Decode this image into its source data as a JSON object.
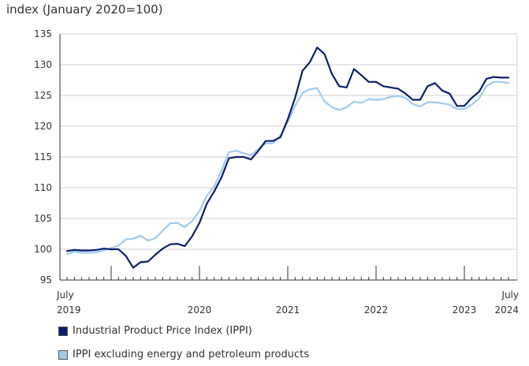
{
  "chart_data": {
    "type": "line",
    "ylabel": "index (January 2020=100)",
    "ylim": [
      95,
      135
    ],
    "yticks": [
      95,
      100,
      105,
      110,
      115,
      120,
      125,
      130,
      135
    ],
    "x_start": "July 2019",
    "x_end": "July 2024",
    "x_ticklabels": [
      {
        "label": "July",
        "sub": "2019"
      },
      {
        "label": "2020"
      },
      {
        "label": "2021"
      },
      {
        "label": "2022"
      },
      {
        "label": "2023"
      },
      {
        "label": "July",
        "sub": "2024"
      }
    ],
    "grid": "horizontal",
    "legend_position": "bottom-left",
    "series": [
      {
        "name": "Industrial Product Price Index (IPPI)",
        "color": "#0b1e6f",
        "values": [
          99.7,
          99.9,
          99.8,
          99.8,
          99.9,
          100.1,
          100.0,
          100.0,
          98.9,
          97.0,
          97.9,
          98.0,
          99.1,
          100.1,
          100.8,
          100.9,
          100.5,
          102.1,
          104.3,
          107.4,
          109.4,
          111.7,
          114.8,
          115.0,
          115.0,
          114.6,
          116.0,
          117.6,
          117.6,
          118.2,
          121.1,
          124.6,
          129.0,
          130.4,
          132.8,
          131.7,
          128.5,
          126.5,
          126.3,
          129.3,
          128.3,
          127.2,
          127.2,
          126.5,
          126.3,
          126.1,
          125.3,
          124.3,
          124.3,
          126.5,
          127.0,
          125.8,
          125.3,
          123.3,
          123.3,
          124.6,
          125.6,
          127.7,
          128.0,
          127.9,
          127.9
        ]
      },
      {
        "name": "IPPI excluding energy and petroleum products",
        "color": "#9fcbf0",
        "values": [
          99.2,
          99.6,
          99.4,
          99.4,
          99.5,
          99.8,
          100.2,
          100.6,
          101.6,
          101.7,
          102.2,
          101.4,
          101.8,
          103.0,
          104.2,
          104.3,
          103.6,
          104.6,
          106.2,
          108.7,
          110.2,
          112.8,
          115.8,
          116.0,
          115.6,
          115.3,
          116.3,
          117.2,
          117.2,
          118.5,
          120.7,
          123.3,
          125.4,
          126.0,
          126.2,
          124.0,
          123.1,
          122.6,
          123.1,
          124.0,
          123.8,
          124.4,
          124.3,
          124.4,
          124.8,
          124.9,
          124.6,
          123.6,
          123.2,
          123.9,
          123.9,
          123.7,
          123.5,
          122.8,
          122.8,
          123.5,
          124.5,
          126.5,
          127.2,
          127.2,
          127.0
        ]
      }
    ]
  }
}
